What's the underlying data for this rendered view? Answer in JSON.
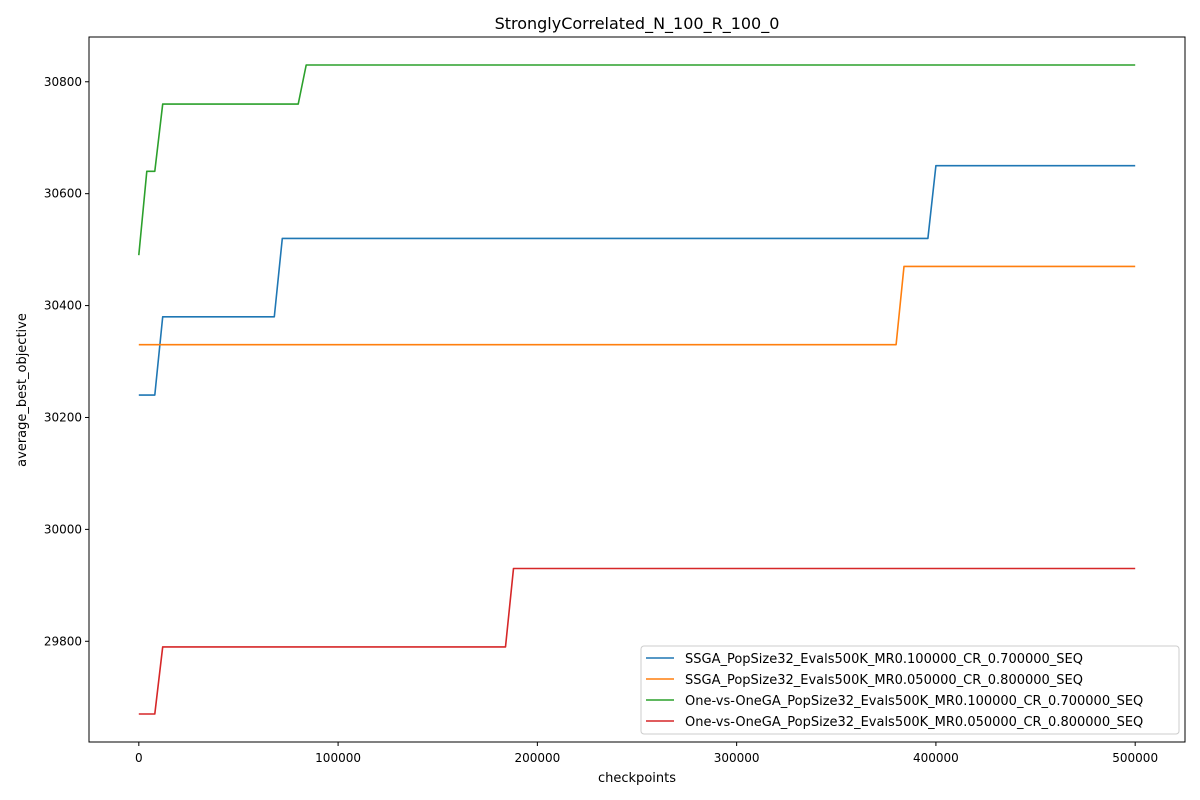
{
  "chart_data": {
    "type": "line",
    "title": "StronglyCorrelated_N_100_R_100_0",
    "xlabel": "checkpoints",
    "ylabel": "average_best_objective",
    "xlim": [
      -25000,
      525000
    ],
    "ylim": [
      29620,
      30880
    ],
    "xticks": [
      0,
      100000,
      200000,
      300000,
      400000,
      500000
    ],
    "yticks": [
      29800,
      30000,
      30200,
      30400,
      30600,
      30800
    ],
    "grid": false,
    "legend_position": "lower-right",
    "series": [
      {
        "name": "SSGA_PopSize32_Evals500K_MR0.100000_CR_0.700000_SEQ",
        "color": "#1f77b4",
        "x": [
          0,
          8000,
          12000,
          68000,
          72000,
          396000,
          400000,
          500000
        ],
        "y": [
          30240,
          30240,
          30380,
          30380,
          30520,
          30520,
          30650,
          30650
        ]
      },
      {
        "name": "SSGA_PopSize32_Evals500K_MR0.050000_CR_0.800000_SEQ",
        "color": "#ff7f0e",
        "x": [
          0,
          380000,
          384000,
          500000
        ],
        "y": [
          30330,
          30330,
          30470,
          30470
        ]
      },
      {
        "name": "One-vs-OneGA_PopSize32_Evals500K_MR0.100000_CR_0.700000_SEQ",
        "color": "#2ca02c",
        "x": [
          0,
          4000,
          8000,
          12000,
          80000,
          84000,
          500000
        ],
        "y": [
          30490,
          30640,
          30640,
          30760,
          30760,
          30830,
          30830
        ]
      },
      {
        "name": "One-vs-OneGA_PopSize32_Evals500K_MR0.050000_CR_0.800000_SEQ",
        "color": "#d62728",
        "x": [
          0,
          8000,
          12000,
          184000,
          188000,
          500000
        ],
        "y": [
          29670,
          29670,
          29790,
          29790,
          29930,
          29930
        ]
      }
    ]
  }
}
